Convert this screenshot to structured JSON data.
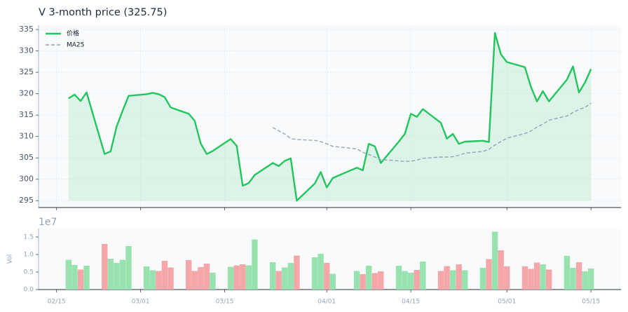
{
  "chart_data": [
    {
      "type": "line",
      "title": "V  3-month price (325.75)",
      "x": [
        "02/17",
        "02/18",
        "02/19",
        "02/20",
        "02/23",
        "02/24",
        "02/25",
        "02/26",
        "02/27",
        "03/02",
        "03/03",
        "03/04",
        "03/05",
        "03/06",
        "03/09",
        "03/10",
        "03/11",
        "03/12",
        "03/13",
        "03/16",
        "03/17",
        "03/18",
        "03/19",
        "03/20",
        "03/23",
        "03/24",
        "03/25",
        "03/26",
        "03/27",
        "03/30",
        "03/31",
        "04/01",
        "04/02",
        "04/06",
        "04/07",
        "04/08",
        "04/09",
        "04/10",
        "04/13",
        "04/14",
        "04/15",
        "04/16",
        "04/17",
        "04/20",
        "04/21",
        "04/22",
        "04/23",
        "04/24",
        "04/27",
        "04/28",
        "04/29",
        "04/30",
        "05/01",
        "05/04",
        "05/05",
        "05/06",
        "05/07",
        "05/08",
        "05/11",
        "05/12",
        "05/13",
        "05/14",
        "05/15"
      ],
      "series": [
        {
          "name": "价格",
          "color": "#22c55e",
          "linestyle": "solid",
          "fill": true,
          "values": [
            318.9,
            319.8,
            318.3,
            320.3,
            305.9,
            306.5,
            312.3,
            316.0,
            319.5,
            319.9,
            320.2,
            319.9,
            319.2,
            316.8,
            315.3,
            313.7,
            308.4,
            305.9,
            306.6,
            309.4,
            307.8,
            298.5,
            299.1,
            301.0,
            303.8,
            303.1,
            304.3,
            304.9,
            295.0,
            299.0,
            301.7,
            298.1,
            300.3,
            302.7,
            302.1,
            308.3,
            307.7,
            303.8,
            308.8,
            310.6,
            315.3,
            314.6,
            316.4,
            313.2,
            309.5,
            310.6,
            308.3,
            308.8,
            309.0,
            308.7,
            334.2,
            329.2,
            327.4,
            326.2,
            321.6,
            318.2,
            320.6,
            318.2,
            323.3,
            326.4,
            320.3,
            322.6,
            325.75
          ]
        },
        {
          "name": "MA25",
          "color": "#94a3b8",
          "linestyle": "dashed",
          "fill": false,
          "values": [
            null,
            null,
            null,
            null,
            null,
            null,
            null,
            null,
            null,
            null,
            null,
            null,
            null,
            null,
            null,
            null,
            null,
            null,
            null,
            null,
            null,
            null,
            null,
            null,
            312.1,
            311.3,
            310.6,
            309.5,
            309.3,
            309.1,
            308.8,
            308.3,
            307.7,
            307.1,
            306.3,
            305.8,
            305.2,
            304.6,
            304.3,
            304.2,
            304.2,
            304.5,
            304.9,
            305.2,
            305.2,
            305.3,
            305.6,
            306.1,
            306.5,
            307.0,
            308.0,
            308.8,
            309.6,
            310.7,
            311.3,
            312.2,
            312.9,
            313.8,
            314.8,
            315.6,
            316.3,
            316.8,
            317.8
          ]
        }
      ],
      "xlim": [
        "02/12",
        "05/20"
      ],
      "xticks": [
        "02/15",
        "03/01",
        "03/15",
        "04/01",
        "04/15",
        "05/01",
        "05/15"
      ],
      "ylim": [
        293.4,
        336
      ],
      "yticks": [
        295,
        300,
        305,
        310,
        315,
        320,
        325,
        330,
        335
      ],
      "grid": true,
      "legend": "upper left"
    },
    {
      "type": "bar",
      "ylabel": "Vol",
      "offset_label": "1e7",
      "x": [
        "02/17",
        "02/18",
        "02/19",
        "02/20",
        "02/23",
        "02/24",
        "02/25",
        "02/26",
        "02/27",
        "03/02",
        "03/03",
        "03/04",
        "03/05",
        "03/06",
        "03/09",
        "03/10",
        "03/11",
        "03/12",
        "03/13",
        "03/16",
        "03/17",
        "03/18",
        "03/19",
        "03/20",
        "03/23",
        "03/24",
        "03/25",
        "03/26",
        "03/27",
        "03/30",
        "03/31",
        "04/01",
        "04/02",
        "04/06",
        "04/07",
        "04/08",
        "04/09",
        "04/10",
        "04/13",
        "04/14",
        "04/15",
        "04/16",
        "04/17",
        "04/20",
        "04/21",
        "04/22",
        "04/23",
        "04/24",
        "04/27",
        "04/28",
        "04/29",
        "04/30",
        "05/01",
        "05/04",
        "05/05",
        "05/06",
        "05/07",
        "05/08",
        "05/11",
        "05/12",
        "05/13",
        "05/14",
        "05/15"
      ],
      "values": [
        0.85,
        0.7,
        0.57,
        0.68,
        1.3,
        0.88,
        0.76,
        0.85,
        1.24,
        0.66,
        0.55,
        0.53,
        0.82,
        0.63,
        0.84,
        0.53,
        0.64,
        0.74,
        0.48,
        0.65,
        0.69,
        0.72,
        0.69,
        1.43,
        0.78,
        0.53,
        0.63,
        0.76,
        0.97,
        0.92,
        1.02,
        0.76,
        0.45,
        0.53,
        0.44,
        0.68,
        0.47,
        0.52,
        0.68,
        0.53,
        0.48,
        0.56,
        0.8,
        0.53,
        0.67,
        0.55,
        0.72,
        0.55,
        0.62,
        0.87,
        1.65,
        1.12,
        0.66,
        0.66,
        0.59,
        0.77,
        0.72,
        0.57,
        0.96,
        0.62,
        0.78,
        0.52,
        0.6
      ],
      "colors": [
        "#98e2b0",
        "#98e2b0",
        "#f4a6a8",
        "#98e2b0",
        "#f4a6a8",
        "#98e2b0",
        "#98e2b0",
        "#98e2b0",
        "#98e2b0",
        "#98e2b0",
        "#98e2b0",
        "#f4a6a8",
        "#f4a6a8",
        "#f4a6a8",
        "#f4a6a8",
        "#f4a6a8",
        "#f4a6a8",
        "#f4a6a8",
        "#98e2b0",
        "#98e2b0",
        "#f4a6a8",
        "#f4a6a8",
        "#98e2b0",
        "#98e2b0",
        "#98e2b0",
        "#f4a6a8",
        "#98e2b0",
        "#98e2b0",
        "#f4a6a8",
        "#98e2b0",
        "#98e2b0",
        "#f4a6a8",
        "#98e2b0",
        "#98e2b0",
        "#f4a6a8",
        "#98e2b0",
        "#f4a6a8",
        "#f4a6a8",
        "#98e2b0",
        "#98e2b0",
        "#98e2b0",
        "#f4a6a8",
        "#98e2b0",
        "#f4a6a8",
        "#f4a6a8",
        "#98e2b0",
        "#f4a6a8",
        "#98e2b0",
        "#98e2b0",
        "#f4a6a8",
        "#98e2b0",
        "#f4a6a8",
        "#f4a6a8",
        "#f4a6a8",
        "#f4a6a8",
        "#f4a6a8",
        "#98e2b0",
        "#f4a6a8",
        "#98e2b0",
        "#98e2b0",
        "#f4a6a8",
        "#98e2b0",
        "#98e2b0"
      ],
      "xlim": [
        "02/12",
        "05/20"
      ],
      "xticks": [
        "02/15",
        "03/01",
        "03/15",
        "04/01",
        "04/15",
        "05/01",
        "05/15"
      ],
      "ylim": [
        0,
        1.74
      ],
      "yticks": [
        {
          "value": 0,
          "label": "0.0"
        },
        {
          "value": 0.5,
          "label": "0.5"
        },
        {
          "value": 1,
          "label": "1.0"
        },
        {
          "value": 1.5,
          "label": "1.5"
        }
      ]
    }
  ]
}
